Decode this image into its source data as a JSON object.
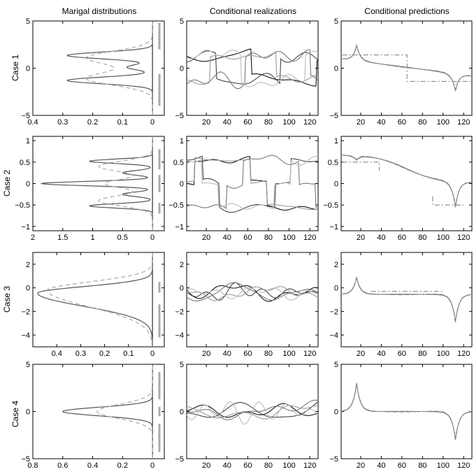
{
  "figure": {
    "column_titles": [
      "Marigal distributions",
      "Conditional realizations",
      "Conditional predictions"
    ],
    "row_labels": [
      "Case 1",
      "Case 2",
      "Case 3",
      "Case 4"
    ]
  },
  "chart_data": [
    {
      "type": "line",
      "row": 0,
      "col": 0,
      "xlim_reversed": [
        0.4,
        0
      ],
      "ylim": [
        -5,
        5
      ],
      "xticks": [
        0.4,
        0.3,
        0.2,
        0.1,
        0
      ],
      "yticks": [
        -5,
        0,
        5
      ],
      "xticklabels": [
        "0.4",
        "0.3",
        "0.2",
        "0.1",
        "0"
      ],
      "yticklabels": [
        "−5",
        "0",
        "5"
      ],
      "series": [
        {
          "style": "solid",
          "kind": "density",
          "peaks": [
            [
              -1.3,
              0.285,
              0.35
            ],
            [
              0.1,
              0.085,
              0.28
            ],
            [
              1.35,
              0.285,
              0.35
            ]
          ]
        },
        {
          "style": "dashed",
          "kind": "density",
          "peaks": [
            [
              -1.1,
              0.22,
              0.7
            ],
            [
              1.1,
              0.22,
              0.7
            ]
          ]
        }
      ],
      "bars": [
        [
          2,
          4.8
        ],
        [
          -4,
          -0.6
        ]
      ]
    },
    {
      "type": "line",
      "row": 1,
      "col": 0,
      "xlim_reversed": [
        2,
        0
      ],
      "ylim": [
        -1.1,
        1.1
      ],
      "xticks": [
        2,
        1.5,
        1,
        0.5,
        0
      ],
      "yticks": [
        -1,
        -0.5,
        0,
        0.5,
        1
      ],
      "xticklabels": [
        "2",
        "1.5",
        "1",
        "0.5",
        "0"
      ],
      "yticklabels": [
        "−1",
        "−0.5",
        "0",
        "0.5",
        "1"
      ],
      "series": [
        {
          "style": "solid",
          "kind": "density",
          "peaks": [
            [
              -0.52,
              1.05,
              0.05
            ],
            [
              -0.25,
              0.5,
              0.05
            ],
            [
              0.0,
              1.85,
              0.05
            ],
            [
              0.25,
              0.5,
              0.05
            ],
            [
              0.52,
              1.05,
              0.05
            ]
          ]
        },
        {
          "style": "dashed",
          "kind": "density",
          "peaks": [
            [
              -0.4,
              0.9,
              0.12
            ],
            [
              0.0,
              0.8,
              0.1
            ],
            [
              0.4,
              0.9,
              0.12
            ]
          ]
        }
      ],
      "bars": [
        [
          0.33,
          0.8
        ],
        [
          -0.2,
          0.2
        ],
        [
          -0.7,
          -0.45
        ]
      ]
    },
    {
      "type": "line",
      "row": 2,
      "col": 0,
      "xlim_reversed": [
        0.5,
        0
      ],
      "ylim": [
        -5,
        3
      ],
      "xticks": [
        0.4,
        0.3,
        0.2,
        0.1,
        0
      ],
      "yticks": [
        -4,
        -2,
        0,
        2
      ],
      "xticklabels": [
        "0.4",
        "0.3",
        "0.2",
        "0.1",
        "0"
      ],
      "yticklabels": [
        "−4",
        "−2",
        "0",
        "2"
      ],
      "series": [
        {
          "style": "solid",
          "kind": "skew",
          "peak": 0.48,
          "mode": -0.45,
          "wl": 1.1,
          "wr": 0.55
        },
        {
          "style": "dashed",
          "kind": "skew",
          "peak": 0.44,
          "mode": -0.2,
          "wl": 1.4,
          "wr": 0.7
        }
      ],
      "bars": [
        [
          -0.4,
          0.5
        ],
        [
          -4.2,
          -1.4
        ]
      ]
    },
    {
      "type": "line",
      "row": 3,
      "col": 0,
      "xlim_reversed": [
        0.8,
        0
      ],
      "ylim": [
        -5,
        5
      ],
      "xticks": [
        0.8,
        0.6,
        0.4,
        0.2,
        0
      ],
      "yticks": [
        -5,
        0,
        5
      ],
      "xticklabels": [
        "0.8",
        "0.6",
        "0.4",
        "0.2",
        "0"
      ],
      "yticklabels": [
        "−5",
        "0",
        "5"
      ],
      "series": [
        {
          "style": "solid",
          "kind": "density",
          "peaks": [
            [
              0.0,
              0.6,
              0.45
            ]
          ]
        },
        {
          "style": "dashed",
          "kind": "density",
          "peaks": [
            [
              0.0,
              0.37,
              0.75
            ]
          ]
        }
      ],
      "bars": [
        [
          1.3,
          4.2
        ],
        [
          -0.5,
          0.5
        ],
        [
          -4.3,
          -1.3
        ]
      ]
    },
    {
      "type": "line",
      "row": 0,
      "col": 1,
      "xlim": [
        1,
        128
      ],
      "ylim": [
        -5,
        5
      ],
      "xticks": [
        20,
        40,
        60,
        80,
        100,
        120
      ],
      "yticks": [
        -5,
        0,
        5
      ],
      "xticklabels": [
        "20",
        "40",
        "60",
        "80",
        "100",
        "120"
      ],
      "yticklabels": [
        "−5",
        "0",
        "5"
      ],
      "realizations": {
        "count": 5,
        "amplitude": 1.6,
        "bimodal": [
          1.5,
          -1.5
        ],
        "seed": 11
      }
    },
    {
      "type": "line",
      "row": 1,
      "col": 1,
      "xlim": [
        1,
        128
      ],
      "ylim": [
        -1.1,
        1.1
      ],
      "xticks": [
        20,
        40,
        60,
        80,
        100,
        120
      ],
      "yticks": [
        -1,
        -0.5,
        0,
        0.5,
        1
      ],
      "xticklabels": [
        "20",
        "40",
        "60",
        "80",
        "100",
        "120"
      ],
      "yticklabels": [
        "−1",
        "−0.5",
        "0",
        "0.5",
        "1"
      ],
      "realizations": {
        "count": 5,
        "amplitude": 0.55,
        "levels": [
          0.55,
          0,
          -0.55
        ],
        "seed": 23
      }
    },
    {
      "type": "line",
      "row": 2,
      "col": 1,
      "xlim": [
        1,
        128
      ],
      "ylim": [
        -5,
        3
      ],
      "xticks": [
        20,
        40,
        60,
        80,
        100,
        120
      ],
      "yticks": [
        -4,
        -2,
        0,
        2
      ],
      "xticklabels": [
        "20",
        "40",
        "60",
        "80",
        "100",
        "120"
      ],
      "yticklabels": [
        "−4",
        "−2",
        "0",
        "2"
      ],
      "realizations": {
        "count": 5,
        "amplitude": 1.0,
        "offset": -0.4,
        "seed": 37
      }
    },
    {
      "type": "line",
      "row": 3,
      "col": 1,
      "xlim": [
        1,
        128
      ],
      "ylim": [
        -5,
        5
      ],
      "xticks": [
        20,
        40,
        60,
        80,
        100,
        120
      ],
      "yticks": [
        -5,
        0,
        5
      ],
      "xticklabels": [
        "20",
        "40",
        "60",
        "80",
        "100",
        "120"
      ],
      "yticklabels": [
        "−5",
        "0",
        "5"
      ],
      "realizations": {
        "count": 5,
        "amplitude": 1.2,
        "seed": 53
      }
    },
    {
      "type": "line",
      "row": 0,
      "col": 2,
      "xlim": [
        1,
        128
      ],
      "ylim": [
        -5,
        5
      ],
      "xticks": [
        20,
        40,
        60,
        80,
        100,
        120
      ],
      "yticks": [
        -5,
        0,
        5
      ],
      "xticklabels": [
        "20",
        "40",
        "60",
        "80",
        "100",
        "120"
      ],
      "yticklabels": [
        "−5",
        "0",
        "5"
      ],
      "predictions": {
        "spike_pos": 16,
        "spike_val": 2.4,
        "dip_pos": 112,
        "dip_val": -2.4,
        "left_level": 1.0,
        "right_level": -0.8,
        "step": {
          "high": 1.4,
          "low": -1.4,
          "at": 65,
          "start": 2,
          "end": 127
        }
      }
    },
    {
      "type": "line",
      "row": 1,
      "col": 2,
      "xlim": [
        1,
        128
      ],
      "ylim": [
        -1.1,
        1.1
      ],
      "xticks": [
        20,
        40,
        60,
        80,
        100,
        120
      ],
      "yticks": [
        -1,
        -0.5,
        0,
        0.5,
        1
      ],
      "xticklabels": [
        "20",
        "40",
        "60",
        "80",
        "100",
        "120"
      ],
      "yticklabels": [
        "−1",
        "−0.5",
        "0",
        "0.5",
        "1"
      ],
      "predictions": {
        "spike_pos": 16,
        "spike_val": 0.55,
        "dip_pos": 112,
        "dip_val": -0.55,
        "left_level": 0.35,
        "right_level": -0.3,
        "ramp": true,
        "step": {
          "high": 0.55,
          "low": -0.5,
          "segments": [
            [
              2,
              38,
              0.5
            ],
            [
              90,
              120,
              -0.5
            ]
          ]
        }
      }
    },
    {
      "type": "line",
      "row": 2,
      "col": 2,
      "xlim": [
        1,
        128
      ],
      "ylim": [
        -5,
        3
      ],
      "xticks": [
        20,
        40,
        60,
        80,
        100,
        120
      ],
      "yticks": [
        -4,
        -2,
        0,
        2
      ],
      "xticklabels": [
        "20",
        "40",
        "60",
        "80",
        "100",
        "120"
      ],
      "yticklabels": [
        "−4",
        "−2",
        "0",
        "2"
      ],
      "predictions": {
        "spike_pos": 16,
        "spike_val": 0.9,
        "dip_pos": 112,
        "dip_val": -2.9,
        "left_level": -0.55,
        "right_level": -0.55,
        "step": {
          "level": -0.3,
          "start": 30,
          "end": 100
        }
      }
    },
    {
      "type": "line",
      "row": 3,
      "col": 2,
      "xlim": [
        1,
        128
      ],
      "ylim": [
        -5,
        5
      ],
      "xticks": [
        20,
        40,
        60,
        80,
        100,
        120
      ],
      "yticks": [
        -5,
        0,
        5
      ],
      "xticklabels": [
        "20",
        "40",
        "60",
        "80",
        "100",
        "120"
      ],
      "yticklabels": [
        "−5",
        "0",
        "5"
      ],
      "predictions": {
        "spike_pos": 16,
        "spike_val": 3.0,
        "dip_pos": 112,
        "dip_val": -3.0,
        "left_level": 0.0,
        "right_level": 0.0
      }
    }
  ]
}
